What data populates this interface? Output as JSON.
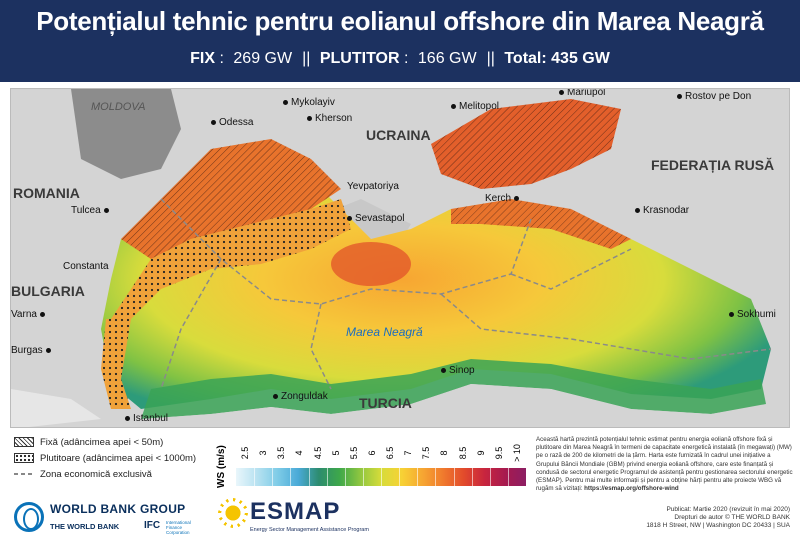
{
  "header": {
    "title": "Potențialul tehnic pentru eolianul offshore din Marea Neagră",
    "fix_label": "FIX",
    "fix_value": "269 GW",
    "sep1": "||",
    "plutitor_label": "PLUTITOR",
    "plutitor_value": "166 GW",
    "sep2": "||",
    "total": "Total: 435 GW"
  },
  "map": {
    "countries": {
      "moldova": "MOLDOVA",
      "ukraine": "UCRAINA",
      "romania": "ROMANIA",
      "russia": "FEDERAȚIA RUSĂ",
      "bulgaria": "BULGARIA",
      "turkey": "TURCIA"
    },
    "sea": "Marea Neagră",
    "cities": {
      "odessa": "Odessa",
      "mykolayiv": "Mykolayiv",
      "kherson": "Kherson",
      "melitopol": "Melitopol",
      "mariupol": "Mariupol",
      "rostov": "Rostov pe Don",
      "tulcea": "Tulcea",
      "yevpatoriya": "Yevpatoriya",
      "sevastapol": "Sevastapol",
      "kerch": "Kerch",
      "krasnodar": "Krasnodar",
      "constanta": "Constanta",
      "varna": "Varna",
      "burgas": "Burgas",
      "sokhumi": "Sokhumi",
      "sinop": "Sinop",
      "zonguldak": "Zonguldak",
      "istanbul": "Istanbul"
    },
    "colors": {
      "land": "#d4d4d4",
      "land_dark": "#8c8c8c",
      "fixed_zone": "#e8732c",
      "floating_zone": "#f0a23a",
      "low_wind": "#2e9b7a",
      "high_wind": "#f7c93a"
    }
  },
  "legend": {
    "fixed": "Fixă (adâncimea apei < 50m)",
    "floating": "Plutitoare (adâncimea apei < 1000m)",
    "eez": "Zona economică exclusivă"
  },
  "scale": {
    "unit": "WS (m/s)",
    "ticks": [
      "2.5",
      "3",
      "3.5",
      "4",
      "4.5",
      "5",
      "5.5",
      "6",
      "6.5",
      "7",
      "7.5",
      "8",
      "8.5",
      "9",
      "9.5",
      "> 10"
    ]
  },
  "description": {
    "text": "Această hartă prezintă potențialul tehnic estimat pentru energia eoliană offshore fixă și plutitoare din Marea Neagră în termeni de capacitate energetică instalată (în megawați) (MW) pe o rază de 200 de kilometri de la țărm. Harta este furnizată în cadrul unei inițiative a Grupului Băncii Mondiale (GBM) privind energia eoliană offshore, care este finanțată și condusă de sectorul energetic Programul de asistență pentru gestionarea sectorului energetic (ESMAP). Pentru mai multe informații și pentru a obține hărți pentru alte proiecte WBG vă rugăm să vizitați:",
    "link": "https://esmap.org/offshore-wind"
  },
  "logos": {
    "wbg": "WORLD BANK GROUP",
    "wb": "THE WORLD BANK",
    "ifc": "IFC",
    "ifc_sub": "International Finance Corporation",
    "esmap": "ESMAP",
    "esmap_sub": "Energy Sector Management Assistance Program"
  },
  "publication": {
    "line1": "Publicat: Martie 2020 (revizuit în mai 2020)",
    "line2": "Drepturi de autor © THE WORLD BANK",
    "line3": "1818 H Street, NW | Washington DC 20433 | SUA"
  }
}
